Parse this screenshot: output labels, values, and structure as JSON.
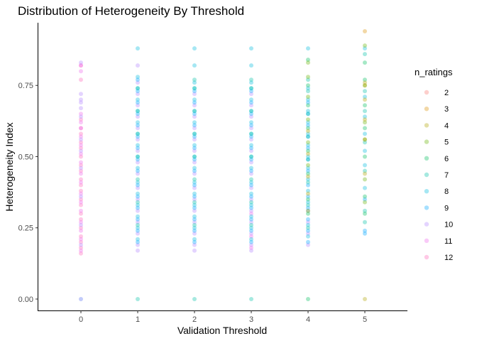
{
  "chart_data": {
    "type": "scatter",
    "title": "Distribution of Heterogeneity By Threshold",
    "xlabel": "Validation Threshold",
    "ylabel": "Heterogeneity Index",
    "xlim": [
      -0.75,
      5.75
    ],
    "ylim": [
      -0.04,
      0.97
    ],
    "x_ticks": [
      0,
      1,
      2,
      3,
      4,
      5
    ],
    "y_ticks": [
      0.0,
      0.25,
      0.5,
      0.75
    ],
    "y_tick_labels": [
      "0.00",
      "0.25",
      "0.50",
      "0.75"
    ],
    "grid": false,
    "point_alpha": 0.35,
    "legend": {
      "title": "n_ratings",
      "position": "right",
      "entries": [
        {
          "label": "2",
          "color": "#F8766D"
        },
        {
          "label": "3",
          "color": "#DB8E00"
        },
        {
          "label": "4",
          "color": "#AEA200"
        },
        {
          "label": "5",
          "color": "#64B200"
        },
        {
          "label": "6",
          "color": "#00BD5C"
        },
        {
          "label": "7",
          "color": "#00C1A7"
        },
        {
          "label": "8",
          "color": "#00BADE"
        },
        {
          "label": "9",
          "color": "#00A6FF"
        },
        {
          "label": "10",
          "color": "#B385FF"
        },
        {
          "label": "11",
          "color": "#EF67EB"
        },
        {
          "label": "12",
          "color": "#FF63B6"
        }
      ]
    },
    "series": [
      {
        "x": 0,
        "color": "#FF63B6",
        "values": [
          0.16,
          0.18,
          0.2,
          0.22,
          0.25,
          0.28,
          0.3,
          0.33,
          0.35,
          0.38,
          0.4,
          0.42,
          0.45,
          0.47,
          0.5,
          0.53,
          0.55,
          0.58,
          0.6,
          0.63,
          0.77,
          0.82
        ]
      },
      {
        "x": 0,
        "color": "#EF67EB",
        "values": [
          0.17,
          0.21,
          0.24,
          0.27,
          0.31,
          0.34,
          0.37,
          0.41,
          0.44,
          0.48,
          0.51,
          0.54,
          0.57,
          0.6,
          0.62,
          0.65,
          0.8,
          0.82
        ]
      },
      {
        "x": 0,
        "color": "#B385FF",
        "values": [
          0.19,
          0.26,
          0.36,
          0.46,
          0.52,
          0.56,
          0.64,
          0.67,
          0.69,
          0.7,
          0.72,
          0.83
        ]
      },
      {
        "x": 0,
        "color": "#4F6BF0",
        "values": [
          0.0
        ]
      },
      {
        "x": 1,
        "color": "#B385FF",
        "values": [
          0.17,
          0.19,
          0.23,
          0.27,
          0.31,
          0.35,
          0.39,
          0.44,
          0.48,
          0.52,
          0.56,
          0.6,
          0.64,
          0.68,
          0.72,
          0.76,
          0.82
        ]
      },
      {
        "x": 1,
        "color": "#00BADE",
        "values": [
          0.21,
          0.25,
          0.29,
          0.33,
          0.37,
          0.41,
          0.46,
          0.5,
          0.54,
          0.58,
          0.62,
          0.66,
          0.7,
          0.74,
          0.78,
          0.88
        ]
      },
      {
        "x": 1,
        "color": "#00A6FF",
        "values": [
          0.2,
          0.24,
          0.28,
          0.32,
          0.36,
          0.4,
          0.45,
          0.49,
          0.53,
          0.57,
          0.61,
          0.65,
          0.69,
          0.73,
          0.77
        ]
      },
      {
        "x": 1,
        "color": "#00C1A7",
        "values": [
          0.0,
          0.26,
          0.34,
          0.42,
          0.5,
          0.58,
          0.66,
          0.74
        ]
      },
      {
        "x": 2,
        "color": "#B385FF",
        "values": [
          0.17,
          0.19,
          0.23,
          0.27,
          0.31,
          0.35,
          0.39,
          0.44,
          0.48,
          0.52,
          0.56,
          0.6,
          0.64,
          0.68,
          0.72
        ]
      },
      {
        "x": 2,
        "color": "#00BADE",
        "values": [
          0.21,
          0.25,
          0.29,
          0.33,
          0.37,
          0.41,
          0.46,
          0.5,
          0.54,
          0.58,
          0.62,
          0.66,
          0.7,
          0.74,
          0.76,
          0.82,
          0.88
        ]
      },
      {
        "x": 2,
        "color": "#00A6FF",
        "values": [
          0.2,
          0.24,
          0.28,
          0.32,
          0.36,
          0.4,
          0.45,
          0.49,
          0.53,
          0.57,
          0.61,
          0.65,
          0.69,
          0.73
        ]
      },
      {
        "x": 2,
        "color": "#00C1A7",
        "values": [
          0.0,
          0.26,
          0.34,
          0.42,
          0.5,
          0.58,
          0.66,
          0.74,
          0.77
        ]
      },
      {
        "x": 3,
        "color": "#B385FF",
        "values": [
          0.17,
          0.19,
          0.23,
          0.27,
          0.31,
          0.35,
          0.39,
          0.44,
          0.48,
          0.52,
          0.56,
          0.6,
          0.64,
          0.68,
          0.72
        ]
      },
      {
        "x": 3,
        "color": "#EF67EB",
        "values": [
          0.18,
          0.22,
          0.3
        ]
      },
      {
        "x": 3,
        "color": "#00BADE",
        "values": [
          0.21,
          0.25,
          0.29,
          0.33,
          0.37,
          0.41,
          0.46,
          0.5,
          0.54,
          0.58,
          0.62,
          0.66,
          0.7,
          0.74,
          0.76,
          0.82,
          0.88
        ]
      },
      {
        "x": 3,
        "color": "#00A6FF",
        "values": [
          0.2,
          0.24,
          0.28,
          0.32,
          0.36,
          0.4,
          0.45,
          0.49,
          0.53,
          0.57,
          0.61,
          0.65,
          0.69,
          0.73
        ]
      },
      {
        "x": 3,
        "color": "#00C1A7",
        "values": [
          0.0,
          0.26,
          0.34,
          0.42,
          0.5,
          0.58,
          0.66,
          0.74,
          0.77
        ]
      },
      {
        "x": 4,
        "color": "#B385FF",
        "values": [
          0.19,
          0.23,
          0.27,
          0.31
        ]
      },
      {
        "x": 4,
        "color": "#00A6FF",
        "values": [
          0.2,
          0.24,
          0.28,
          0.32,
          0.36,
          0.4,
          0.45,
          0.49,
          0.53,
          0.57,
          0.61,
          0.65,
          0.69
        ]
      },
      {
        "x": 4,
        "color": "#00BADE",
        "values": [
          0.22,
          0.26,
          0.34,
          0.38,
          0.42,
          0.46,
          0.5,
          0.54,
          0.58,
          0.62,
          0.66,
          0.7,
          0.74,
          0.88
        ]
      },
      {
        "x": 4,
        "color": "#00C1A7",
        "values": [
          0.25,
          0.33,
          0.41,
          0.49,
          0.57,
          0.65,
          0.73,
          0.77
        ]
      },
      {
        "x": 4,
        "color": "#00BD5C",
        "values": [
          0.0,
          0.3,
          0.35,
          0.44,
          0.52,
          0.6,
          0.68,
          0.75,
          0.84
        ]
      },
      {
        "x": 4,
        "color": "#64B200",
        "values": [
          0.31,
          0.47,
          0.55,
          0.63,
          0.71,
          0.78,
          0.83
        ]
      },
      {
        "x": 4,
        "color": "#AEA200",
        "values": [
          0.37,
          0.43,
          0.51,
          0.59
        ]
      },
      {
        "x": 5,
        "color": "#00A6FF",
        "values": [
          0.23,
          0.24,
          0.35
        ]
      },
      {
        "x": 5,
        "color": "#00BADE",
        "values": [
          0.39,
          0.47,
          0.52,
          0.58,
          0.64,
          0.71,
          0.88
        ]
      },
      {
        "x": 5,
        "color": "#00C1A7",
        "values": [
          0.27,
          0.31,
          0.45,
          0.55,
          0.66,
          0.73,
          0.86
        ]
      },
      {
        "x": 5,
        "color": "#00BD5C",
        "values": [
          0.3,
          0.36,
          0.5,
          0.6,
          0.68,
          0.77,
          0.83
        ]
      },
      {
        "x": 5,
        "color": "#64B200",
        "values": [
          0.34,
          0.42,
          0.56,
          0.62,
          0.75,
          0.89
        ]
      },
      {
        "x": 5,
        "color": "#AEA200",
        "values": [
          0.0,
          0.44,
          0.56,
          0.63,
          0.7,
          0.75,
          0.76
        ]
      },
      {
        "x": 5,
        "color": "#DB8E00",
        "values": [
          0.94
        ]
      }
    ]
  }
}
